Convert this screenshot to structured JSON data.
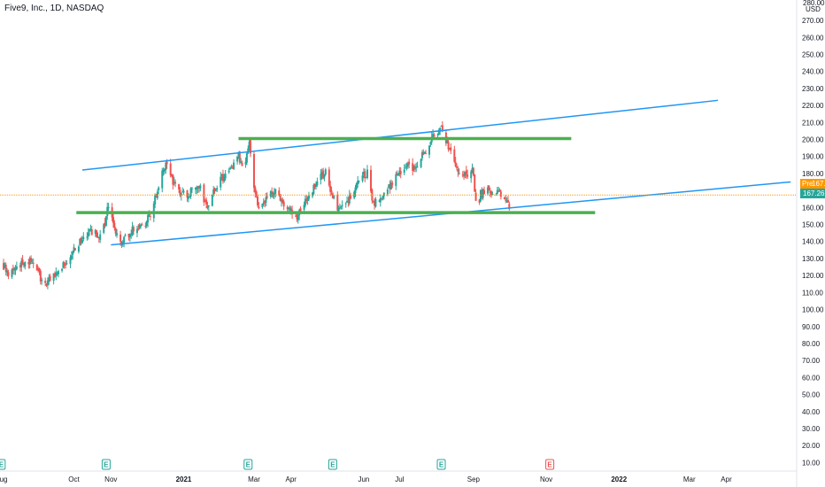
{
  "header": {
    "symbol_title": "Five9, Inc., 1D, NASDAQ"
  },
  "colors": {
    "up": "#26a69a",
    "down": "#ef5350",
    "trendline": "#2196f3",
    "level": "#4caf50",
    "pre_market": "#ff9800",
    "last_price": "#26a69a",
    "earnings": "#26a69a",
    "earnings_future": "#ef5350"
  },
  "chart_data": {
    "type": "candlestick",
    "title": "Five9, Inc., 1D, NASDAQ",
    "y_unit": "USD",
    "y_axis_top_label": "280.00",
    "ylim": [
      5,
      282
    ],
    "yticks": [
      "270.00",
      "260.00",
      "250.00",
      "240.00",
      "230.00",
      "220.00",
      "210.00",
      "200.00",
      "190.00",
      "180.00",
      "170.00",
      "160.00",
      "150.00",
      "140.00",
      "130.00",
      "120.00",
      "110.00",
      "100.00",
      "90.00",
      "80.00",
      "70.00",
      "60.00",
      "50.00",
      "40.00",
      "30.00",
      "20.00",
      "10.00"
    ],
    "xticks": [
      {
        "label": "Aug",
        "date": "2020-08-01"
      },
      {
        "label": "Oct",
        "date": "2020-10-01"
      },
      {
        "label": "Nov",
        "date": "2020-11-01"
      },
      {
        "label": "2021",
        "date": "2021-01-01",
        "bold": true
      },
      {
        "label": "Mar",
        "date": "2021-03-01"
      },
      {
        "label": "Apr",
        "date": "2021-04-01"
      },
      {
        "label": "Jun",
        "date": "2021-06-01"
      },
      {
        "label": "Jul",
        "date": "2021-07-01"
      },
      {
        "label": "Sep",
        "date": "2021-09-01"
      },
      {
        "label": "Nov",
        "date": "2021-11-01"
      },
      {
        "label": "2022",
        "date": "2022-01-01",
        "bold": true
      },
      {
        "label": "Mar",
        "date": "2022-03-01"
      },
      {
        "label": "Apr",
        "date": "2022-04-01"
      }
    ],
    "xlim": [
      "2020-07-31",
      "2022-05-30"
    ],
    "price_path": [
      [
        "2020-08-01",
        128
      ],
      [
        "2020-08-08",
        121
      ],
      [
        "2020-08-15",
        125
      ],
      [
        "2020-08-22",
        129
      ],
      [
        "2020-08-29",
        127
      ],
      [
        "2020-09-06",
        113
      ],
      [
        "2020-09-13",
        119
      ],
      [
        "2020-09-20",
        124
      ],
      [
        "2020-09-27",
        131
      ],
      [
        "2020-10-04",
        138
      ],
      [
        "2020-10-11",
        144
      ],
      [
        "2020-10-18",
        146
      ],
      [
        "2020-10-22",
        140
      ],
      [
        "2020-10-27",
        150
      ],
      [
        "2020-10-31",
        166
      ],
      [
        "2020-11-03",
        149
      ],
      [
        "2020-11-08",
        138
      ],
      [
        "2020-11-15",
        143
      ],
      [
        "2020-11-20",
        147
      ],
      [
        "2020-11-25",
        149
      ],
      [
        "2020-12-01",
        152
      ],
      [
        "2020-12-06",
        160
      ],
      [
        "2020-12-10",
        170
      ],
      [
        "2020-12-15",
        182
      ],
      [
        "2020-12-18",
        185
      ],
      [
        "2020-12-23",
        175
      ],
      [
        "2020-12-29",
        170
      ],
      [
        "2021-01-05",
        167
      ],
      [
        "2021-01-10",
        172
      ],
      [
        "2021-01-14",
        174
      ],
      [
        "2021-01-18",
        165
      ],
      [
        "2021-01-21",
        162
      ],
      [
        "2021-01-27",
        170
      ],
      [
        "2021-02-03",
        178
      ],
      [
        "2021-02-10",
        182
      ],
      [
        "2021-02-16",
        190
      ],
      [
        "2021-02-21",
        184
      ],
      [
        "2021-02-25",
        198
      ],
      [
        "2021-03-01",
        172
      ],
      [
        "2021-03-05",
        158
      ],
      [
        "2021-03-12",
        165
      ],
      [
        "2021-03-19",
        170
      ],
      [
        "2021-03-26",
        162
      ],
      [
        "2021-04-01",
        158
      ],
      [
        "2021-04-06",
        154
      ],
      [
        "2021-04-12",
        162
      ],
      [
        "2021-04-18",
        170
      ],
      [
        "2021-04-24",
        176
      ],
      [
        "2021-04-30",
        181
      ],
      [
        "2021-05-05",
        168
      ],
      [
        "2021-05-11",
        158
      ],
      [
        "2021-05-17",
        163
      ],
      [
        "2021-05-23",
        170
      ],
      [
        "2021-05-29",
        177
      ],
      [
        "2021-06-04",
        180
      ],
      [
        "2021-06-09",
        163
      ],
      [
        "2021-06-14",
        164
      ],
      [
        "2021-06-20",
        170
      ],
      [
        "2021-06-26",
        176
      ],
      [
        "2021-07-02",
        182
      ],
      [
        "2021-07-08",
        186
      ],
      [
        "2021-07-14",
        182
      ],
      [
        "2021-07-20",
        190
      ],
      [
        "2021-07-26",
        198
      ],
      [
        "2021-07-31",
        204
      ],
      [
        "2021-08-05",
        207
      ],
      [
        "2021-08-09",
        199
      ],
      [
        "2021-08-15",
        190
      ],
      [
        "2021-08-21",
        180
      ],
      [
        "2021-08-26",
        178
      ],
      [
        "2021-08-31",
        183
      ],
      [
        "2021-09-04",
        159
      ],
      [
        "2021-09-07",
        168
      ],
      [
        "2021-09-12",
        170
      ],
      [
        "2021-09-17",
        167
      ],
      [
        "2021-09-22",
        169
      ],
      [
        "2021-09-27",
        165
      ],
      [
        "2021-10-01",
        159
      ],
      [
        "2021-10-04",
        167
      ]
    ],
    "earnings_dates": [
      {
        "date": "2020-08-01",
        "label": "E",
        "reported": true
      },
      {
        "date": "2020-10-28",
        "label": "E",
        "reported": true
      },
      {
        "date": "2021-02-24",
        "label": "E",
        "reported": true
      },
      {
        "date": "2021-05-06",
        "label": "E",
        "reported": true
      },
      {
        "date": "2021-08-05",
        "label": "E",
        "reported": true
      },
      {
        "date": "2021-11-04",
        "label": "E",
        "reported": false
      }
    ],
    "drawings": {
      "upper_channel": [
        [
          "2020-10-08",
          182
        ],
        [
          "2022-03-25",
          223
        ]
      ],
      "lower_channel": [
        [
          "2020-11-01",
          138
        ],
        [
          "2022-05-25",
          175
        ]
      ],
      "resistance": {
        "from": "2021-02-16",
        "to": "2021-11-22",
        "price": 200.5
      },
      "support": {
        "from": "2020-10-03",
        "to": "2021-12-12",
        "price": 157
      }
    },
    "price_labels": {
      "pre_tag": "Pre",
      "pre_price": 167.34,
      "pre_price_text": "167.34",
      "last_price": 167.26,
      "last_price_text": "167.26"
    }
  }
}
